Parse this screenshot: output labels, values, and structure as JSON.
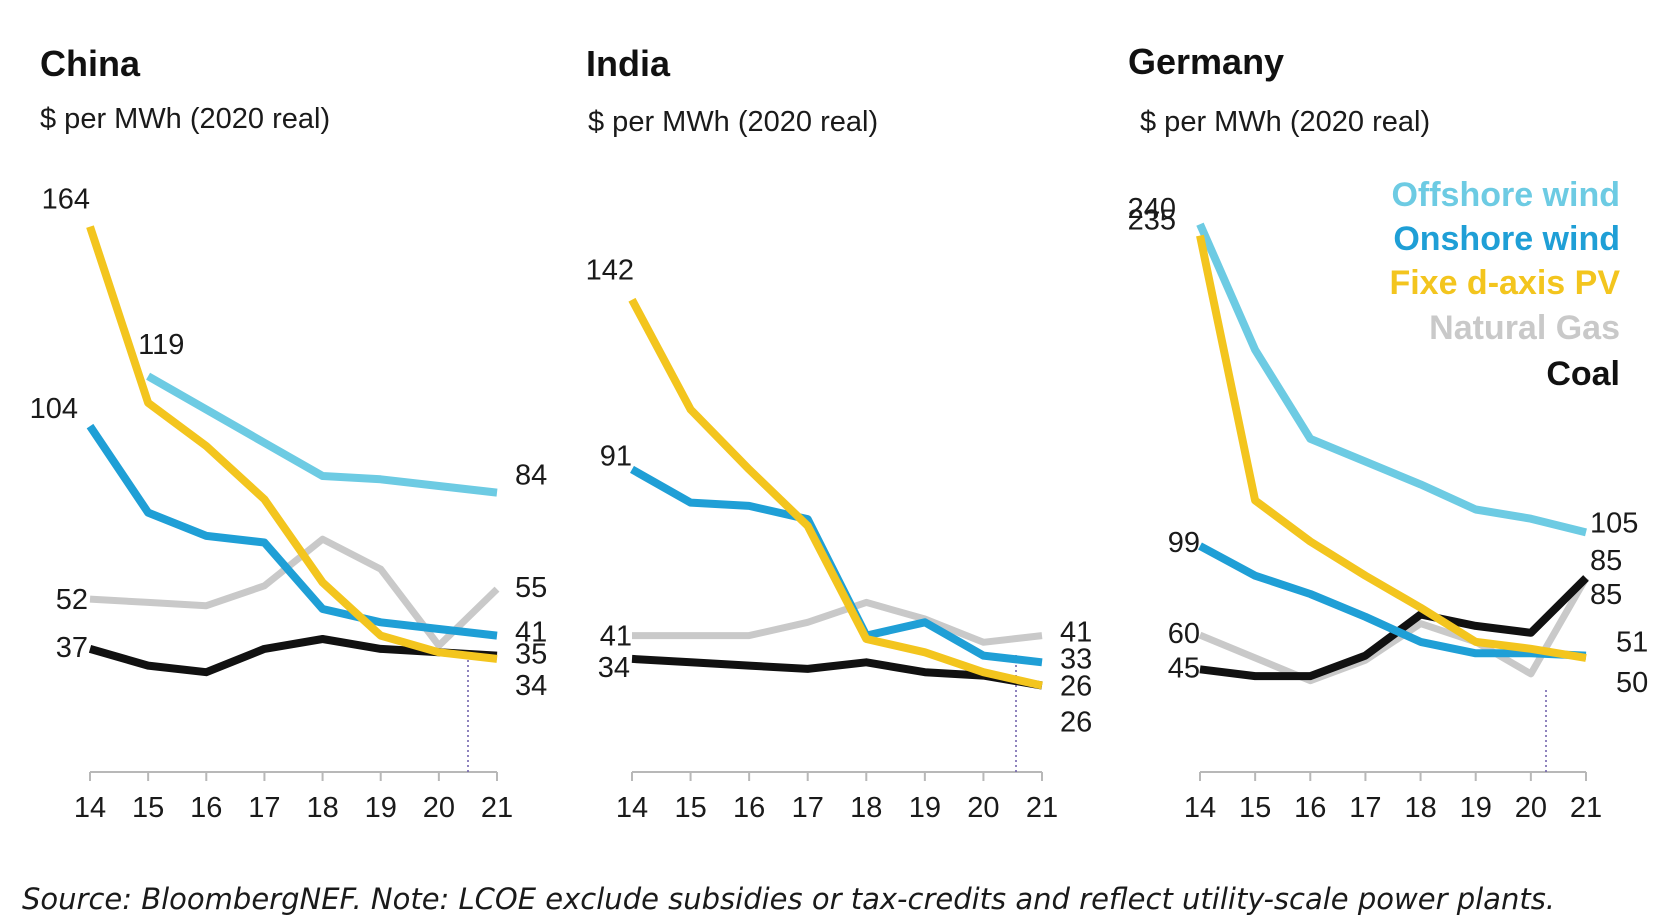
{
  "chart_data": [
    {
      "type": "line",
      "title": "China",
      "subtitle": "$ per MWh (2020 real)",
      "categories": [
        "14",
        "15",
        "16",
        "17",
        "18",
        "19",
        "20",
        "21"
      ],
      "ylim": [
        0,
        175
      ],
      "grid": false,
      "series": [
        {
          "name": "Offshore wind",
          "values": [
            null,
            119,
            109,
            99,
            89,
            88,
            86,
            84
          ]
        },
        {
          "name": "Onshore wind",
          "values": [
            104,
            78,
            71,
            69,
            49,
            45,
            43,
            41
          ]
        },
        {
          "name": "Fixed-axis PV",
          "values": [
            164,
            111,
            98,
            82,
            57,
            41,
            36,
            34
          ]
        },
        {
          "name": "Natural Gas",
          "values": [
            52,
            51,
            50,
            56,
            70,
            61,
            38,
            55
          ]
        },
        {
          "name": "Coal",
          "values": [
            37,
            32,
            30,
            37,
            40,
            37,
            36,
            35
          ]
        }
      ],
      "data_labels": [
        {
          "series": "Fixed-axis PV",
          "x": "14",
          "text": "164"
        },
        {
          "series": "Offshore wind",
          "x": "15",
          "text": "119"
        },
        {
          "series": "Onshore wind",
          "x": "14",
          "text": "104"
        },
        {
          "series": "Natural Gas",
          "x": "14",
          "text": "52"
        },
        {
          "series": "Coal",
          "x": "14",
          "text": "37"
        },
        {
          "series": "Offshore wind",
          "x": "21",
          "text": "84"
        },
        {
          "series": "Natural Gas",
          "x": "21",
          "text": "55"
        },
        {
          "series": "Onshore wind",
          "x": "21",
          "text": "41"
        },
        {
          "series": "Coal",
          "x": "21",
          "text": "35"
        },
        {
          "series": "Fixed-axis PV",
          "x": "21",
          "text": "34"
        }
      ]
    },
    {
      "type": "line",
      "title": "India",
      "subtitle": "$ per MWh (2020 real)",
      "categories": [
        "14",
        "15",
        "16",
        "17",
        "18",
        "19",
        "20",
        "21"
      ],
      "ylim": [
        0,
        175
      ],
      "grid": false,
      "series": [
        {
          "name": "Onshore wind",
          "values": [
            91,
            81,
            80,
            76,
            41,
            45,
            35,
            33
          ]
        },
        {
          "name": "Fixed-axis PV",
          "values": [
            142,
            109,
            91,
            74,
            40,
            36,
            30,
            26
          ]
        },
        {
          "name": "Natural Gas",
          "values": [
            41,
            41,
            41,
            45,
            51,
            46,
            39,
            41
          ]
        },
        {
          "name": "Coal",
          "values": [
            34,
            33,
            32,
            31,
            33,
            30,
            29,
            26
          ]
        }
      ],
      "data_labels": [
        {
          "series": "Fixed-axis PV",
          "x": "14",
          "text": "142"
        },
        {
          "series": "Onshore wind",
          "x": "14",
          "text": "91"
        },
        {
          "series": "Natural Gas",
          "x": "14",
          "text": "41"
        },
        {
          "series": "Coal",
          "x": "14",
          "text": "34"
        },
        {
          "series": "Natural Gas",
          "x": "21",
          "text": "41"
        },
        {
          "series": "Onshore wind",
          "x": "21",
          "text": "33"
        },
        {
          "series": "Coal",
          "x": "21",
          "text": "26"
        },
        {
          "series": "Fixed-axis PV",
          "x": "21",
          "text": "26"
        }
      ]
    },
    {
      "type": "line",
      "title": "Germany",
      "subtitle": "$ per MWh (2020 real)",
      "categories": [
        "14",
        "15",
        "16",
        "17",
        "18",
        "19",
        "20",
        "21"
      ],
      "ylim": [
        0,
        255
      ],
      "grid": false,
      "legend": {
        "position": "top-right",
        "entries": [
          {
            "label": "Offshore wind",
            "color": "#6dcbe3"
          },
          {
            "label": "Onshore wind",
            "color": "#1f9fd6"
          },
          {
            "label": "Fixe d-axis PV",
            "color": "#f3c51e"
          },
          {
            "label": "Natural Gas",
            "color": "#c9c9c9"
          },
          {
            "label": "Coal",
            "color": "#111111"
          }
        ]
      },
      "series": [
        {
          "name": "Offshore wind",
          "values": [
            240,
            185,
            146,
            136,
            126,
            115,
            111,
            105
          ]
        },
        {
          "name": "Onshore wind",
          "values": [
            99,
            86,
            78,
            68,
            57,
            52,
            52,
            51
          ]
        },
        {
          "name": "Fixed-axis PV",
          "values": [
            235,
            119,
            101,
            86,
            72,
            57,
            54,
            50
          ]
        },
        {
          "name": "Natural Gas",
          "values": [
            60,
            50,
            40,
            49,
            65,
            57,
            43,
            85
          ]
        },
        {
          "name": "Coal",
          "values": [
            45,
            42,
            42,
            51,
            69,
            64,
            61,
            85
          ]
        }
      ],
      "data_labels": [
        {
          "series": "Offshore wind",
          "x": "14",
          "text": "240"
        },
        {
          "series": "Fixed-axis PV",
          "x": "14",
          "text": "235"
        },
        {
          "series": "Onshore wind",
          "x": "14",
          "text": "99"
        },
        {
          "series": "Natural Gas",
          "x": "14",
          "text": "60"
        },
        {
          "series": "Coal",
          "x": "14",
          "text": "45"
        },
        {
          "series": "Offshore wind",
          "x": "21",
          "text": "105"
        },
        {
          "series": "Coal",
          "x": "21",
          "text": "85"
        },
        {
          "series": "Natural Gas",
          "x": "21",
          "text": "85"
        },
        {
          "series": "Onshore wind",
          "x": "21",
          "text": "51"
        },
        {
          "series": "Fixed-axis PV",
          "x": "21",
          "text": "50"
        }
      ]
    }
  ],
  "colors": {
    "Offshore wind": "#6dcbe3",
    "Onshore wind": "#1f9fd6",
    "Fixed-axis PV": "#f3c51e",
    "Natural Gas": "#c9c9c9",
    "Coal": "#111111",
    "axis": "#b8b8b8",
    "marker": "#6a5aa8"
  },
  "source_note": "Source: BloombergNEF. Note: LCOE exclude subsidies or tax-credits and reflect utility-scale power plants."
}
